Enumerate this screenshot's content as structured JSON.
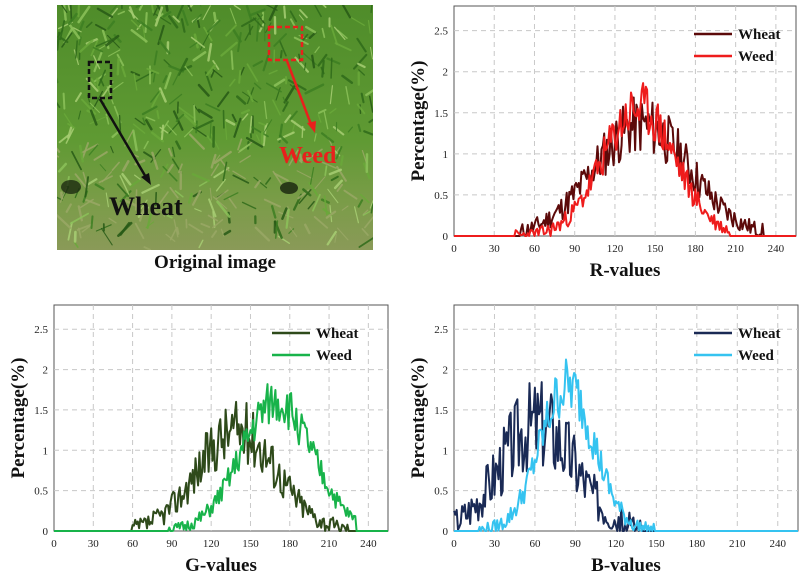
{
  "image_panel": {
    "caption": "Original image",
    "wheat_label": "Wheat",
    "weed_label": "Weed",
    "colors": {
      "wheat_box": "#111111",
      "weed_box": "#e8201c",
      "grass_dark": "#3e7a1f",
      "grass_light": "#7fb548",
      "soil": "#8a9a52"
    }
  },
  "chart_data": [
    {
      "type": "line",
      "title": "",
      "xlabel": "R-values",
      "ylabel": "Percentage(%)",
      "xlim": [
        0,
        255
      ],
      "ylim": [
        0,
        2.8
      ],
      "xticks": [
        0,
        30,
        60,
        90,
        120,
        150,
        180,
        210,
        240
      ],
      "yticks": [
        0,
        0.5,
        1,
        1.5,
        2,
        2.5
      ],
      "xtick_labels": [
        "0",
        "30",
        "60",
        "90",
        "120",
        "150",
        "180",
        "210",
        "240"
      ],
      "ytick_labels": [
        "0",
        "0.5",
        "1",
        "1.5",
        "2",
        "2.5"
      ],
      "grid": true,
      "legend": "top-right",
      "series": [
        {
          "name": "Wheat",
          "color": "#5c0a0a",
          "center": 140,
          "sigma": 36,
          "peak": 1.35,
          "lo": 50,
          "hi": 230,
          "noise": 0.28,
          "seed": 11
        },
        {
          "name": "Weed",
          "color": "#ee1c1c",
          "center": 138,
          "sigma": 27,
          "peak": 1.55,
          "lo": 45,
          "hi": 205,
          "noise": 0.25,
          "seed": 23
        }
      ]
    },
    {
      "type": "line",
      "title": "",
      "xlabel": "G-values",
      "ylabel": "Percentage(%)",
      "xlim": [
        0,
        255
      ],
      "ylim": [
        0,
        2.8
      ],
      "xticks": [
        0,
        30,
        60,
        90,
        120,
        150,
        180,
        210,
        240
      ],
      "yticks": [
        0,
        0.5,
        1,
        1.5,
        2,
        2.5
      ],
      "xtick_labels": [
        "0",
        "30",
        "60",
        "90",
        "120",
        "150",
        "180",
        "210",
        "240"
      ],
      "ytick_labels": [
        "0",
        "0.5",
        "1",
        "1.5",
        "2",
        "2.5"
      ],
      "grid": true,
      "legend": "top-right",
      "series": [
        {
          "name": "Wheat",
          "color": "#2e4a1a",
          "center": 140,
          "sigma": 30,
          "peak": 1.25,
          "lo": 60,
          "hi": 225,
          "noise": 0.3,
          "seed": 37
        },
        {
          "name": "Weed",
          "color": "#18b34a",
          "center": 170,
          "sigma": 27,
          "peak": 1.6,
          "lo": 85,
          "hi": 230,
          "noise": 0.22,
          "seed": 51
        }
      ]
    },
    {
      "type": "line",
      "title": "",
      "xlabel": "B-values",
      "ylabel": "Percentage(%)",
      "xlim": [
        0,
        255
      ],
      "ylim": [
        0,
        2.8
      ],
      "xticks": [
        0,
        30,
        60,
        90,
        120,
        150,
        180,
        210,
        240
      ],
      "yticks": [
        0,
        0.5,
        1,
        1.5,
        2,
        2.5
      ],
      "xtick_labels": [
        "0",
        "30",
        "60",
        "90",
        "120",
        "150",
        "180",
        "210",
        "240"
      ],
      "ytick_labels": [
        "0",
        "0.5",
        "1",
        "1.5",
        "2",
        "2.5"
      ],
      "grid": true,
      "legend": "top-right",
      "series": [
        {
          "name": "Wheat",
          "color": "#1a2a55",
          "center": 62,
          "sigma": 28,
          "peak": 1.35,
          "lo": 0,
          "hi": 140,
          "noise": 0.45,
          "seed": 67
        },
        {
          "name": "Weed",
          "color": "#35c3f0",
          "center": 84,
          "sigma": 20,
          "peak": 1.8,
          "lo": 18,
          "hi": 150,
          "noise": 0.28,
          "seed": 79
        }
      ]
    }
  ]
}
